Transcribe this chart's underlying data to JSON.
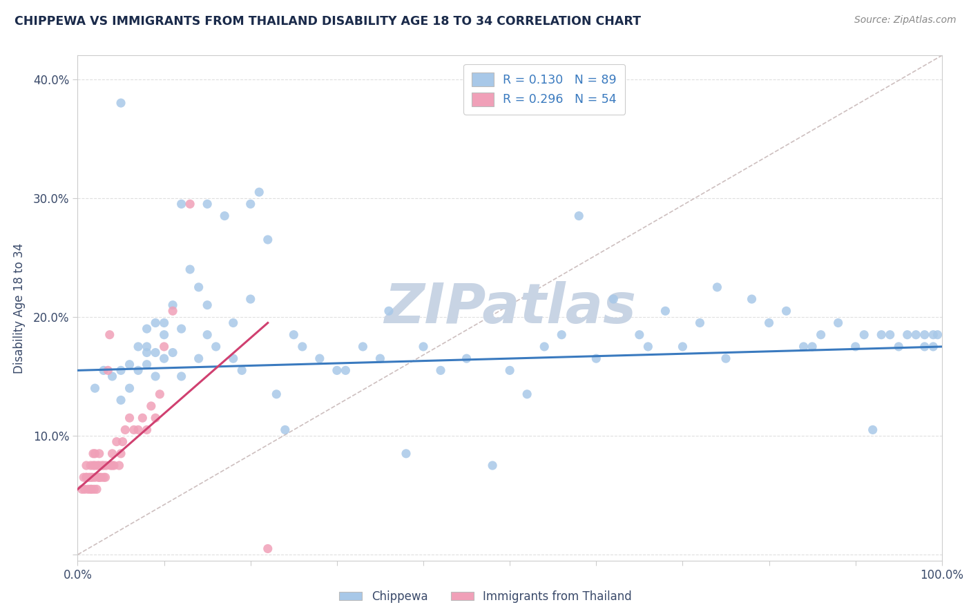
{
  "title": "CHIPPEWA VS IMMIGRANTS FROM THAILAND DISABILITY AGE 18 TO 34 CORRELATION CHART",
  "source_text": "Source: ZipAtlas.com",
  "xlabel": "",
  "ylabel": "Disability Age 18 to 34",
  "xlim": [
    0.0,
    1.0
  ],
  "ylim": [
    -0.005,
    0.42
  ],
  "xticks": [
    0.0,
    0.1,
    0.2,
    0.3,
    0.4,
    0.5,
    0.6,
    0.7,
    0.8,
    0.9,
    1.0
  ],
  "yticks": [
    0.0,
    0.1,
    0.2,
    0.3,
    0.4
  ],
  "chippewa_R": 0.13,
  "chippewa_N": 89,
  "thailand_R": 0.296,
  "thailand_N": 54,
  "chippewa_color": "#a8c8e8",
  "thailand_color": "#f0a0b8",
  "chippewa_line_color": "#3a7abf",
  "thailand_line_color": "#d04070",
  "ref_line_color": "#c8b8b8",
  "watermark": "ZIPatlas",
  "watermark_color": "#c8d4e4",
  "title_color": "#1a2a4a",
  "label_color": "#3a4a6a",
  "tick_color": "#3a4a6a",
  "chippewa_x": [
    0.02,
    0.03,
    0.04,
    0.05,
    0.05,
    0.06,
    0.06,
    0.07,
    0.07,
    0.08,
    0.08,
    0.08,
    0.09,
    0.09,
    0.09,
    0.1,
    0.1,
    0.1,
    0.11,
    0.11,
    0.12,
    0.12,
    0.13,
    0.14,
    0.14,
    0.15,
    0.15,
    0.16,
    0.17,
    0.18,
    0.18,
    0.19,
    0.2,
    0.21,
    0.22,
    0.23,
    0.24,
    0.26,
    0.28,
    0.3,
    0.31,
    0.33,
    0.35,
    0.36,
    0.38,
    0.4,
    0.42,
    0.45,
    0.48,
    0.5,
    0.52,
    0.54,
    0.56,
    0.58,
    0.6,
    0.62,
    0.65,
    0.66,
    0.68,
    0.7,
    0.72,
    0.74,
    0.75,
    0.78,
    0.8,
    0.82,
    0.84,
    0.85,
    0.86,
    0.88,
    0.9,
    0.91,
    0.92,
    0.93,
    0.94,
    0.95,
    0.96,
    0.97,
    0.98,
    0.98,
    0.99,
    0.99,
    0.995,
    0.05,
    0.08,
    0.12,
    0.15,
    0.2,
    0.25
  ],
  "chippewa_y": [
    0.14,
    0.155,
    0.15,
    0.13,
    0.155,
    0.14,
    0.16,
    0.155,
    0.175,
    0.16,
    0.17,
    0.19,
    0.15,
    0.17,
    0.195,
    0.165,
    0.185,
    0.195,
    0.17,
    0.21,
    0.15,
    0.19,
    0.24,
    0.165,
    0.225,
    0.185,
    0.21,
    0.175,
    0.285,
    0.165,
    0.195,
    0.155,
    0.215,
    0.305,
    0.265,
    0.135,
    0.105,
    0.175,
    0.165,
    0.155,
    0.155,
    0.175,
    0.165,
    0.205,
    0.085,
    0.175,
    0.155,
    0.165,
    0.075,
    0.155,
    0.135,
    0.175,
    0.185,
    0.285,
    0.165,
    0.215,
    0.185,
    0.175,
    0.205,
    0.175,
    0.195,
    0.225,
    0.165,
    0.215,
    0.195,
    0.205,
    0.175,
    0.175,
    0.185,
    0.195,
    0.175,
    0.185,
    0.105,
    0.185,
    0.185,
    0.175,
    0.185,
    0.185,
    0.175,
    0.185,
    0.185,
    0.175,
    0.185,
    0.38,
    0.175,
    0.295,
    0.295,
    0.295,
    0.185
  ],
  "thailand_x": [
    0.005,
    0.007,
    0.008,
    0.01,
    0.01,
    0.01,
    0.012,
    0.013,
    0.015,
    0.015,
    0.015,
    0.016,
    0.017,
    0.018,
    0.018,
    0.019,
    0.02,
    0.02,
    0.02,
    0.022,
    0.023,
    0.024,
    0.025,
    0.025,
    0.025,
    0.027,
    0.028,
    0.03,
    0.03,
    0.032,
    0.033,
    0.035,
    0.037,
    0.038,
    0.04,
    0.04,
    0.042,
    0.045,
    0.048,
    0.05,
    0.052,
    0.055,
    0.06,
    0.065,
    0.07,
    0.075,
    0.08,
    0.085,
    0.09,
    0.095,
    0.1,
    0.11,
    0.13,
    0.22
  ],
  "thailand_y": [
    0.055,
    0.065,
    0.055,
    0.065,
    0.065,
    0.075,
    0.055,
    0.065,
    0.055,
    0.065,
    0.075,
    0.055,
    0.065,
    0.075,
    0.085,
    0.055,
    0.065,
    0.075,
    0.085,
    0.055,
    0.075,
    0.065,
    0.065,
    0.075,
    0.085,
    0.065,
    0.075,
    0.065,
    0.075,
    0.065,
    0.075,
    0.155,
    0.185,
    0.075,
    0.075,
    0.085,
    0.075,
    0.095,
    0.075,
    0.085,
    0.095,
    0.105,
    0.115,
    0.105,
    0.105,
    0.115,
    0.105,
    0.125,
    0.115,
    0.135,
    0.175,
    0.205,
    0.295,
    0.005
  ],
  "chip_line_x0": 0.0,
  "chip_line_x1": 1.0,
  "chip_line_y0": 0.155,
  "chip_line_y1": 0.175,
  "thai_line_x0": 0.0,
  "thai_line_x1": 0.22,
  "thai_line_y0": 0.055,
  "thai_line_y1": 0.195,
  "ref_line_x0": 0.0,
  "ref_line_x1": 1.0,
  "ref_line_y0": 0.0,
  "ref_line_y1": 0.42
}
